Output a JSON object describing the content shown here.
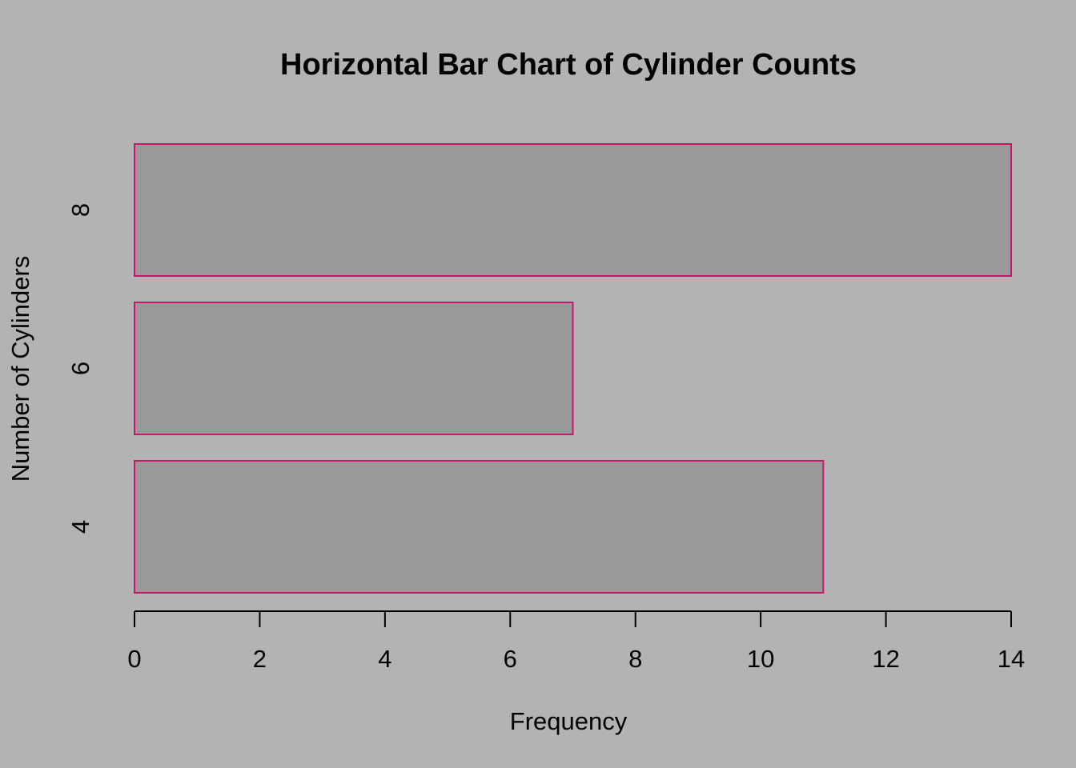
{
  "chart_data": {
    "type": "bar",
    "orientation": "horizontal",
    "title": "Horizontal Bar Chart of Cylinder Counts",
    "xlabel": "Frequency",
    "ylabel": "Number of Cylinders",
    "categories": [
      "4",
      "6",
      "8"
    ],
    "values": [
      11,
      7,
      14
    ],
    "xlim": [
      0,
      14
    ],
    "xticks": [
      "0",
      "2",
      "4",
      "6",
      "8",
      "10",
      "12",
      "14"
    ],
    "grid": false,
    "legend": "none",
    "colors": {
      "background": "#b3b3b3",
      "bar_fill": "#999999",
      "bar_border": "#c8176b",
      "text": "#000000",
      "axis": "#000000"
    }
  }
}
